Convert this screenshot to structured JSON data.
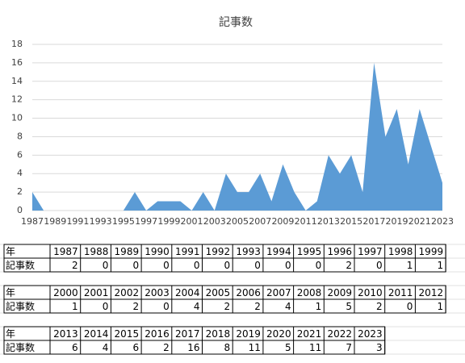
{
  "chart_data": {
    "type": "area",
    "title": "記事数",
    "color": "#5b9bd5",
    "categories": [
      "1987",
      "1988",
      "1989",
      "1990",
      "1991",
      "1992",
      "1993",
      "1994",
      "1995",
      "1996",
      "1997",
      "1998",
      "1999",
      "2000",
      "2001",
      "2002",
      "2003",
      "2004",
      "2005",
      "2006",
      "2007",
      "2008",
      "2009",
      "2010",
      "2011",
      "2012",
      "2013",
      "2014",
      "2015",
      "2016",
      "2017",
      "2018",
      "2019",
      "2020",
      "2021",
      "2022",
      "2023"
    ],
    "values": [
      2,
      0,
      0,
      0,
      0,
      0,
      0,
      0,
      0,
      2,
      0,
      1,
      1,
      1,
      0,
      2,
      0,
      4,
      2,
      2,
      4,
      1,
      5,
      2,
      0,
      1,
      6,
      4,
      6,
      2,
      16,
      8,
      11,
      5,
      11,
      7,
      3
    ],
    "ylim": [
      0,
      18
    ],
    "yticks": [
      0,
      2,
      4,
      6,
      8,
      10,
      12,
      14,
      16,
      18
    ],
    "grid": true
  },
  "table": {
    "row_labels": [
      "年",
      "記事数"
    ],
    "columns_per_block": 13
  }
}
